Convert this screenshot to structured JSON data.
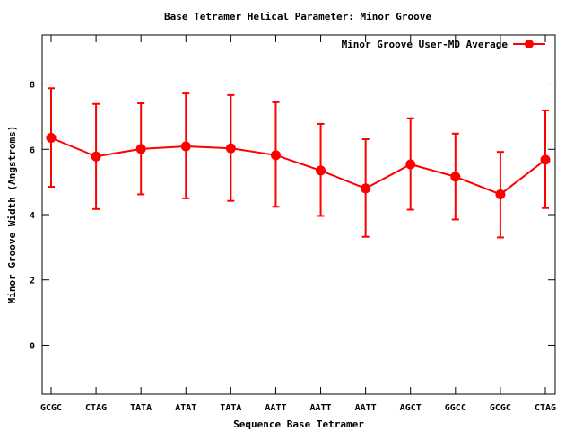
{
  "chart_data": {
    "type": "line",
    "title": "Base Tetramer Helical Parameter: Minor Groove",
    "xlabel": "Sequence Base Tetramer",
    "ylabel": "Minor Groove Width (Angstroms)",
    "categories": [
      "GCGC",
      "CTAG",
      "TATA",
      "ATAT",
      "TATA",
      "AATT",
      "AATT",
      "AATT",
      "AGCT",
      "GGCC",
      "GCGC",
      "CTAG"
    ],
    "ylim": [
      -1.5,
      9.5
    ],
    "yticks": [
      0,
      2,
      4,
      6,
      8
    ],
    "grid": false,
    "legend_position": "top-right",
    "series": [
      {
        "name": "Minor Groove User-MD Average",
        "color": "#ff0000",
        "values": [
          6.35,
          5.78,
          6.01,
          6.09,
          6.03,
          5.82,
          5.35,
          4.8,
          5.54,
          5.16,
          4.62,
          5.68
        ],
        "error_low": [
          4.85,
          4.17,
          4.62,
          4.5,
          4.42,
          4.24,
          3.96,
          3.32,
          4.15,
          3.85,
          3.3,
          4.2
        ],
        "error_high": [
          7.87,
          7.39,
          7.41,
          7.71,
          7.66,
          7.44,
          6.78,
          6.31,
          6.95,
          6.48,
          5.92,
          7.19
        ]
      }
    ]
  }
}
